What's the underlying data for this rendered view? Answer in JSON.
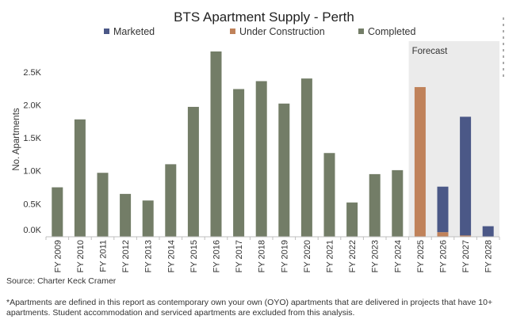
{
  "chart_data": {
    "type": "bar",
    "stacked": true,
    "title": "BTS Apartment Supply - Perth",
    "ylabel": "No. Apartments",
    "ylim": [
      0,
      2800
    ],
    "yticks": [
      {
        "value": 0,
        "label": "0.0K"
      },
      {
        "value": 500,
        "label": "0.5K"
      },
      {
        "value": 1000,
        "label": "1.0K"
      },
      {
        "value": 1500,
        "label": "1.5K"
      },
      {
        "value": 2000,
        "label": "2.0K"
      },
      {
        "value": 2500,
        "label": "2.5K"
      }
    ],
    "categories": [
      "FY 2009",
      "FY 2010",
      "FY 2011",
      "FY 2012",
      "FY 2013",
      "FY 2014",
      "FY 2015",
      "FY 2016",
      "FY 2017",
      "FY 2018",
      "FY 2019",
      "FY 2020",
      "FY 2021",
      "FY 2022",
      "FY 2023",
      "FY 2024",
      "FY 2025",
      "FY 2026",
      "FY 2027",
      "FY 2028"
    ],
    "series": [
      {
        "name": "Completed",
        "color": "#737d67",
        "values": [
          750,
          1780,
          970,
          650,
          550,
          1100,
          1970,
          2810,
          2240,
          2360,
          2020,
          2400,
          1270,
          520,
          950,
          1010,
          0,
          0,
          0,
          0
        ]
      },
      {
        "name": "Under Construction",
        "color": "#c0825a",
        "values": [
          0,
          0,
          0,
          0,
          0,
          0,
          0,
          0,
          0,
          0,
          0,
          0,
          0,
          0,
          0,
          0,
          2270,
          70,
          20,
          0
        ]
      },
      {
        "name": "Marketed",
        "color": "#4b5887",
        "values": [
          0,
          0,
          0,
          0,
          0,
          0,
          0,
          0,
          0,
          0,
          0,
          0,
          0,
          0,
          0,
          0,
          0,
          690,
          1800,
          160
        ]
      }
    ],
    "legend": {
      "placement": "top",
      "entries": [
        {
          "label": "Marketed",
          "color": "#4b5887"
        },
        {
          "label": "Under Construction",
          "color": "#c0825a"
        },
        {
          "label": "Completed",
          "color": "#737d67"
        }
      ]
    },
    "forecast": {
      "label": "Forecast",
      "from_category": "FY 2025",
      "to_category": "FY 2028",
      "color": "#ebebeb"
    },
    "grid": false
  },
  "source": "Source: Charter Keck Cramer",
  "footnote": "*Apartments are defined in this report as contemporary own your own (OYO) apartments that are delivered in projects that have 10+ apartments. Student accommodation and serviced apartments are excluded from this analysis."
}
